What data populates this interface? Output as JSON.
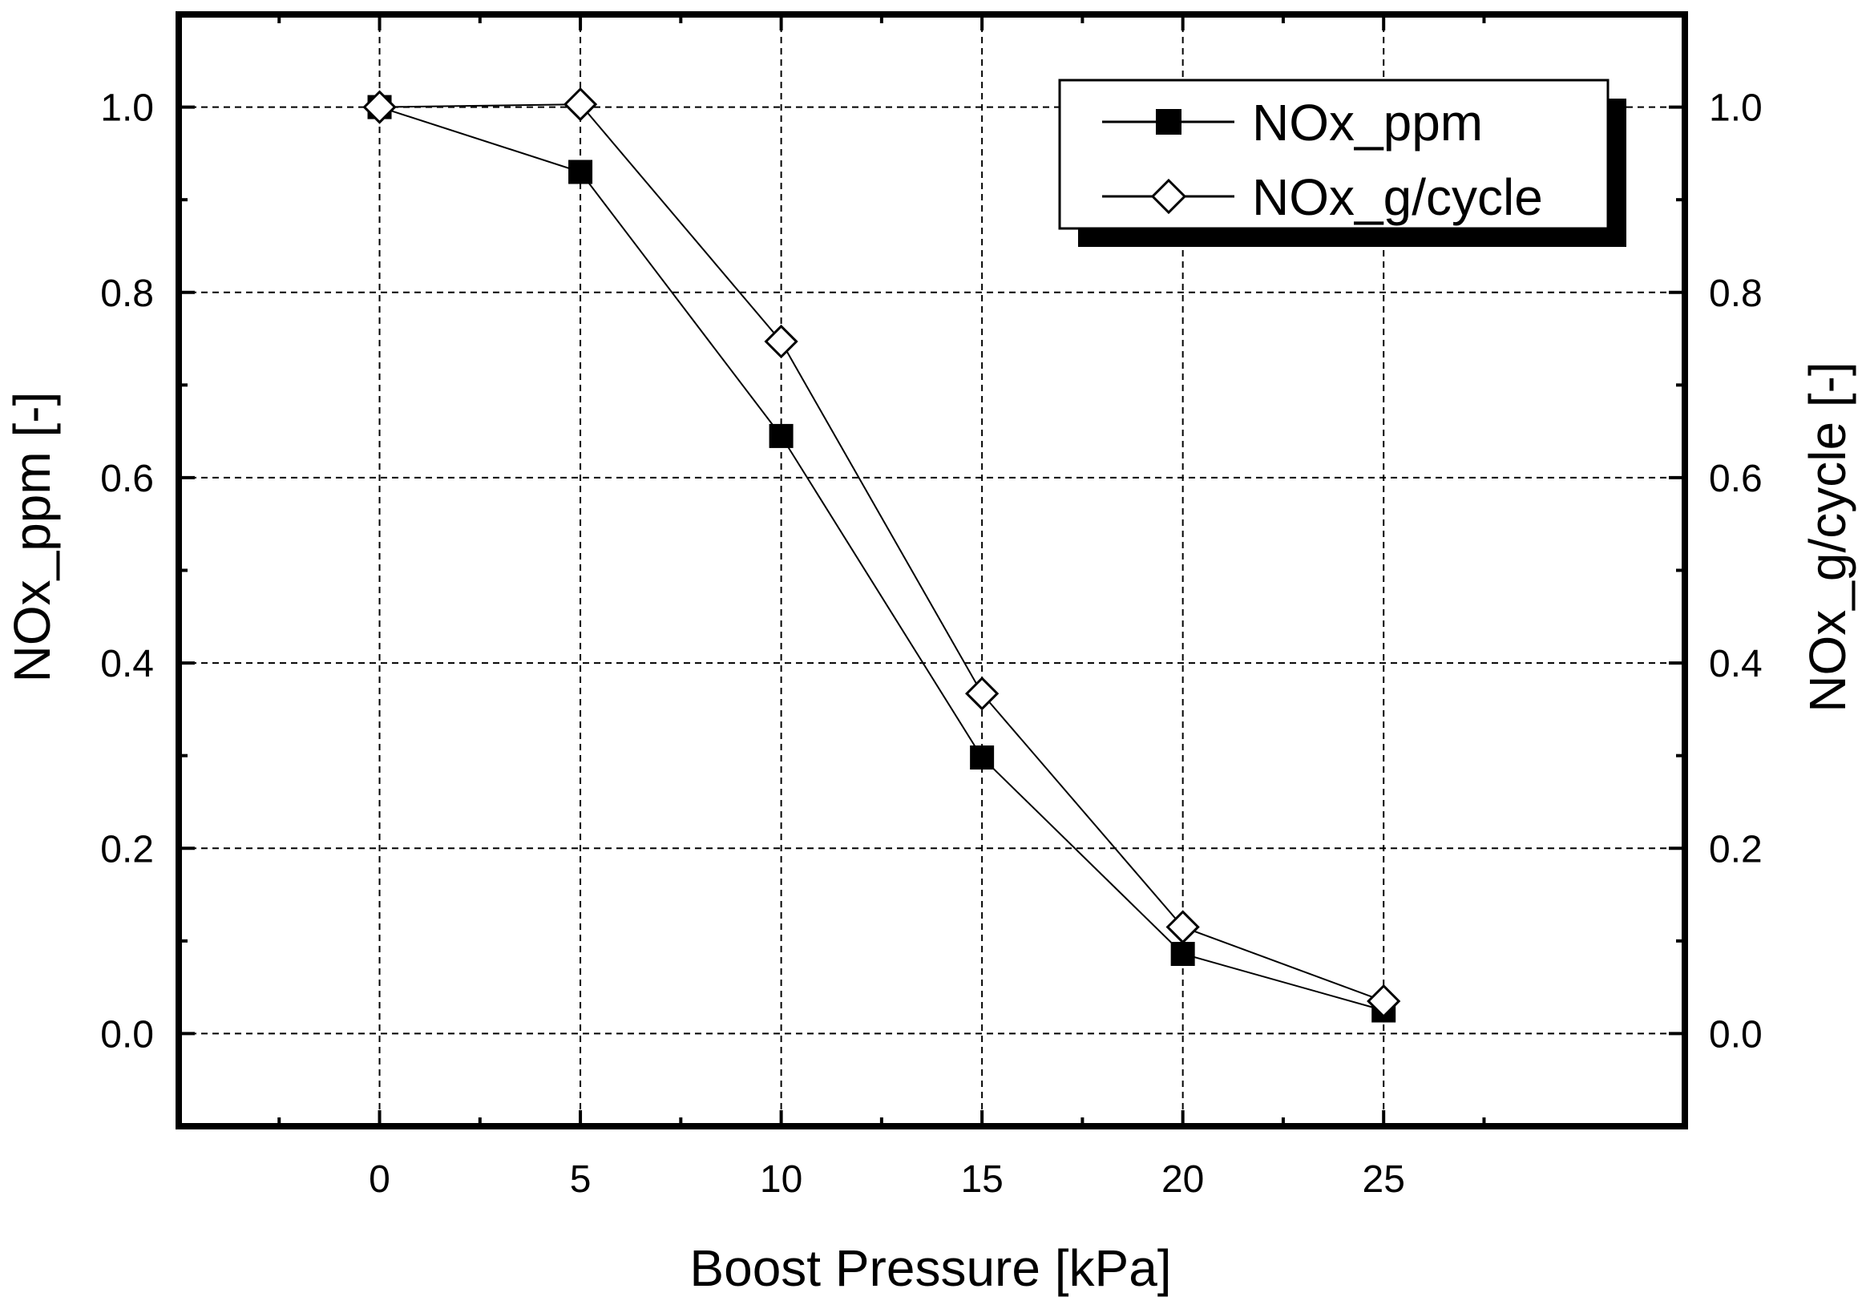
{
  "chart_data": {
    "type": "line",
    "title": "",
    "xlabel": "Boost Pressure [kPa]",
    "ylabel": "NOx_ppm [-]",
    "ylabel_right": "NOx_g/cycle [-]",
    "xlim": [
      -5,
      32.5
    ],
    "ylim": [
      -0.1,
      1.1
    ],
    "x_ticks": [
      0,
      5,
      10,
      15,
      20,
      25
    ],
    "x_tick_labels": [
      "0",
      "5",
      "10",
      "15",
      "20",
      "25"
    ],
    "y_ticks": [
      0.0,
      0.2,
      0.4,
      0.6,
      0.8,
      1.0
    ],
    "y_tick_labels": [
      "0.0",
      "0.2",
      "0.4",
      "0.6",
      "0.8",
      "1.0"
    ],
    "grid": true,
    "legend_position": "top-right",
    "x": [
      0,
      5,
      10,
      15,
      20,
      25
    ],
    "series": [
      {
        "name": "NOx_ppm",
        "marker": "filled-square",
        "color": "#000000",
        "values": [
          1.0,
          0.93,
          0.645,
          0.298,
          0.086,
          0.025
        ]
      },
      {
        "name": "NOx_g/cycle",
        "marker": "open-diamond",
        "color": "#000000",
        "values": [
          1.0,
          1.003,
          0.747,
          0.367,
          0.115,
          0.035
        ]
      }
    ]
  }
}
